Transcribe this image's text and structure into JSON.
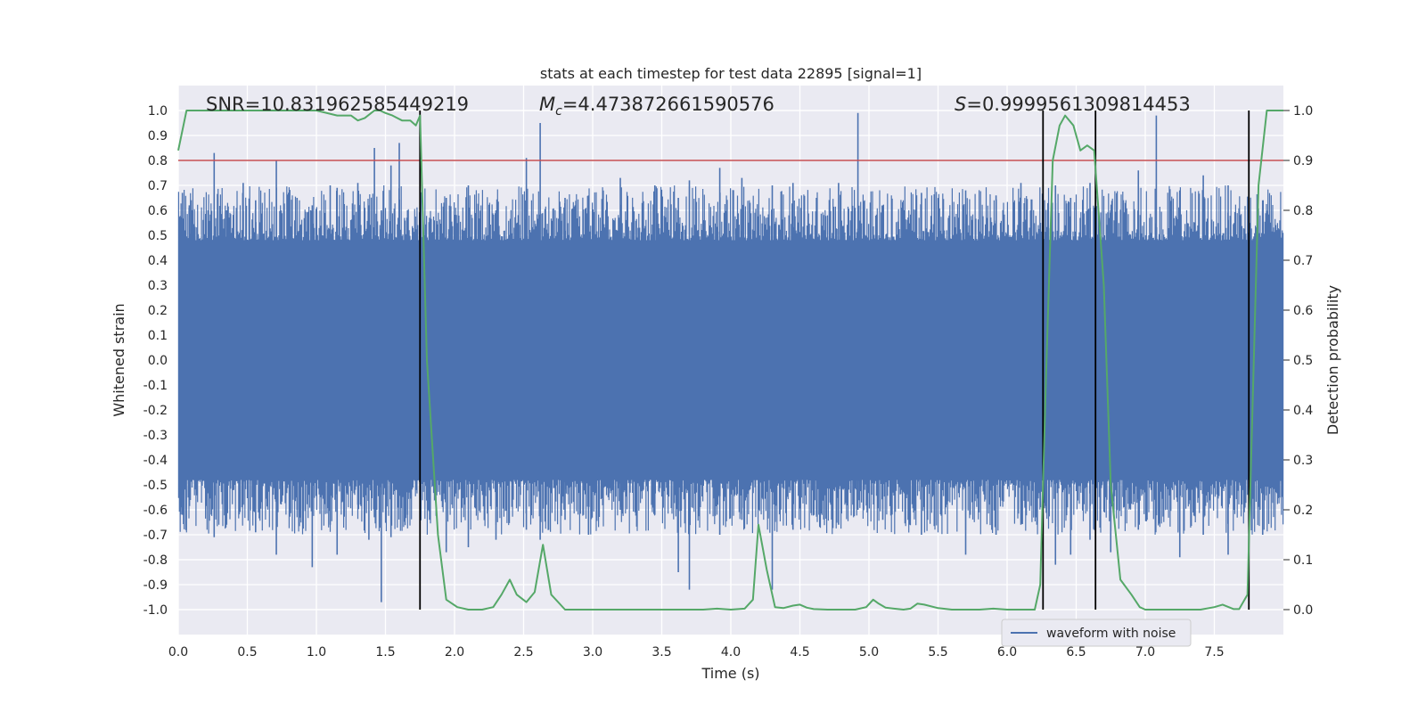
{
  "chart_data": {
    "type": "line",
    "title": "stats at each timestep for test data 22895 [signal=1]",
    "xlabel": "Time (s)",
    "ylabel": "Whitened strain",
    "y2label": "Detection probability",
    "xlim": [
      0.0,
      8.0
    ],
    "ylim": [
      -1.1,
      1.1
    ],
    "y2lim": [
      -0.05,
      1.05
    ],
    "xticks": [
      "0.0",
      "0.5",
      "1.0",
      "1.5",
      "2.0",
      "2.5",
      "3.0",
      "3.5",
      "4.0",
      "4.5",
      "5.0",
      "5.5",
      "6.0",
      "6.5",
      "7.0",
      "7.5"
    ],
    "yticks": [
      "1.0",
      "0.9",
      "0.8",
      "0.7",
      "0.6",
      "0.5",
      "0.4",
      "0.3",
      "0.2",
      "0.1",
      "0.0",
      "-0.1",
      "-0.2",
      "-0.3",
      "-0.4",
      "-0.5",
      "-0.6",
      "-0.7",
      "-0.8",
      "-0.9",
      "-1.0"
    ],
    "y2ticks": [
      "1.0",
      "0.9",
      "0.8",
      "0.7",
      "0.6",
      "0.5",
      "0.4",
      "0.3",
      "0.2",
      "0.1",
      "0.0"
    ],
    "grid": true,
    "legend": {
      "position": "bottom-right",
      "entries": [
        "waveform with noise"
      ]
    },
    "annotations": {
      "snr": "SNR=10.831962585449219",
      "mc_symbol": "M",
      "mc_sub": "c",
      "mc_value": "=4.473872661590576",
      "s_symbol": "S",
      "s_value": "=0.9999561309814453"
    },
    "threshold": {
      "axis": "y2",
      "value": 0.9,
      "color": "#c44e52"
    },
    "vlines": [
      1.75,
      6.26,
      6.64,
      7.75
    ],
    "waveform": {
      "name": "waveform with noise",
      "color": "#4c72b0",
      "band": [
        -0.48,
        0.48
      ],
      "spikes": [
        [
          0.03,
          0.67,
          -0.62
        ],
        [
          0.08,
          0.62,
          -0.55
        ],
        [
          0.26,
          0.83,
          -0.71
        ],
        [
          0.35,
          0.6,
          -0.66
        ],
        [
          0.47,
          0.71,
          -0.58
        ],
        [
          0.56,
          0.64,
          -0.69
        ],
        [
          0.71,
          0.8,
          -0.78
        ],
        [
          0.86,
          0.65,
          -0.6
        ],
        [
          0.97,
          0.62,
          -0.83
        ],
        [
          1.1,
          0.7,
          -0.66
        ],
        [
          1.15,
          0.69,
          -0.78
        ],
        [
          1.3,
          0.71,
          -0.58
        ],
        [
          1.38,
          0.62,
          -0.72
        ],
        [
          1.42,
          0.85,
          -0.63
        ],
        [
          1.47,
          0.6,
          -0.97
        ],
        [
          1.54,
          0.78,
          -0.71
        ],
        [
          1.6,
          0.87,
          -0.52
        ],
        [
          1.66,
          0.6,
          -0.62
        ],
        [
          1.82,
          0.57,
          -0.64
        ],
        [
          1.94,
          0.65,
          -0.77
        ],
        [
          2.1,
          0.7,
          -0.75
        ],
        [
          2.3,
          0.6,
          -0.72
        ],
        [
          2.52,
          0.81,
          -0.68
        ],
        [
          2.62,
          0.95,
          -0.72
        ],
        [
          2.8,
          0.65,
          -0.64
        ],
        [
          2.97,
          0.66,
          -0.7
        ],
        [
          3.2,
          0.73,
          -0.6
        ],
        [
          3.45,
          0.7,
          -0.62
        ],
        [
          3.62,
          0.65,
          -0.85
        ],
        [
          3.7,
          0.72,
          -0.92
        ],
        [
          3.92,
          0.77,
          -0.7
        ],
        [
          4.08,
          0.73,
          -0.64
        ],
        [
          4.3,
          0.7,
          -0.92
        ],
        [
          4.45,
          0.71,
          -0.68
        ],
        [
          4.62,
          0.65,
          -0.62
        ],
        [
          4.78,
          0.71,
          -0.66
        ],
        [
          4.92,
          0.99,
          -0.6
        ],
        [
          5.1,
          0.62,
          -0.64
        ],
        [
          5.38,
          0.67,
          -0.7
        ],
        [
          5.7,
          0.68,
          -0.78
        ],
        [
          5.92,
          0.66,
          -0.7
        ],
        [
          6.1,
          0.71,
          -0.66
        ],
        [
          6.35,
          0.7,
          -0.82
        ],
        [
          6.46,
          0.65,
          -0.78
        ],
        [
          6.6,
          0.71,
          -0.72
        ],
        [
          6.75,
          0.6,
          -0.77
        ],
        [
          6.95,
          0.76,
          -0.68
        ],
        [
          7.08,
          0.98,
          -0.6
        ],
        [
          7.25,
          0.68,
          -0.79
        ],
        [
          7.42,
          0.74,
          -0.7
        ],
        [
          7.6,
          0.7,
          -0.78
        ],
        [
          7.85,
          0.64,
          -0.7
        ]
      ]
    },
    "detection": {
      "name": "detection probability",
      "color": "#55a868",
      "x": [
        0.0,
        0.06,
        0.2,
        0.4,
        0.6,
        0.8,
        1.0,
        1.15,
        1.25,
        1.3,
        1.35,
        1.42,
        1.46,
        1.5,
        1.55,
        1.62,
        1.68,
        1.72,
        1.75,
        1.8,
        1.88,
        1.94,
        2.02,
        2.1,
        2.2,
        2.28,
        2.34,
        2.4,
        2.45,
        2.52,
        2.58,
        2.64,
        2.7,
        2.8,
        2.9,
        3.0,
        3.2,
        3.4,
        3.6,
        3.8,
        3.9,
        4.0,
        4.1,
        4.16,
        4.2,
        4.26,
        4.32,
        4.38,
        4.45,
        4.5,
        4.55,
        4.6,
        4.7,
        4.8,
        4.9,
        4.98,
        5.03,
        5.07,
        5.12,
        5.18,
        5.25,
        5.3,
        5.35,
        5.4,
        5.5,
        5.6,
        5.7,
        5.8,
        5.9,
        6.0,
        6.1,
        6.2,
        6.24,
        6.28,
        6.33,
        6.38,
        6.42,
        6.48,
        6.53,
        6.58,
        6.63,
        6.7,
        6.75,
        6.82,
        6.9,
        6.96,
        7.0,
        7.2,
        7.4,
        7.5,
        7.56,
        7.64,
        7.68,
        7.74,
        7.82,
        7.88,
        8.0
      ],
      "y": [
        0.92,
        1.0,
        1.0,
        1.0,
        1.0,
        1.0,
        1.0,
        0.99,
        0.99,
        0.98,
        0.985,
        1.0,
        1.0,
        0.995,
        0.99,
        0.98,
        0.98,
        0.97,
        0.99,
        0.5,
        0.15,
        0.02,
        0.005,
        0.0,
        0.0,
        0.005,
        0.03,
        0.06,
        0.03,
        0.015,
        0.035,
        0.13,
        0.03,
        0.0,
        0.0,
        0.0,
        0.0,
        0.0,
        0.0,
        0.0,
        0.002,
        0.0,
        0.002,
        0.02,
        0.17,
        0.08,
        0.005,
        0.003,
        0.008,
        0.01,
        0.004,
        0.001,
        0.0,
        0.0,
        0.0,
        0.005,
        0.02,
        0.012,
        0.004,
        0.002,
        0.0,
        0.002,
        0.012,
        0.01,
        0.003,
        0.0,
        0.0,
        0.0,
        0.002,
        0.0,
        0.0,
        0.0,
        0.05,
        0.45,
        0.9,
        0.97,
        0.99,
        0.97,
        0.92,
        0.93,
        0.92,
        0.65,
        0.25,
        0.06,
        0.03,
        0.005,
        0.0,
        0.0,
        0.0,
        0.005,
        0.01,
        0.001,
        0.001,
        0.03,
        0.85,
        1.0,
        1.0
      ]
    }
  }
}
